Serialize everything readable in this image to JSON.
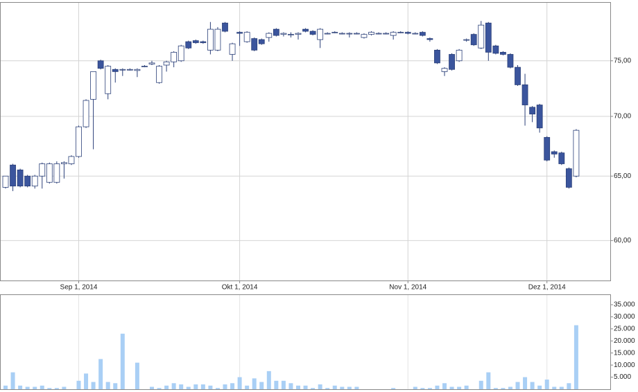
{
  "chart_data": [
    {
      "type": "candlestick",
      "log_scale": true,
      "grid": true,
      "up_color": "#ffffff",
      "down_color": "#3b559d",
      "edge_color": "#2a3f78",
      "categories": [
        null,
        null,
        null,
        null,
        null,
        null,
        null,
        null,
        null,
        null,
        "Sep 1, 2014",
        null,
        null,
        null,
        null,
        null,
        null,
        null,
        null,
        null,
        null,
        null,
        null,
        null,
        null,
        null,
        null,
        null,
        null,
        null,
        null,
        null,
        "Okt 1, 2014",
        null,
        null,
        null,
        null,
        null,
        null,
        null,
        null,
        null,
        null,
        null,
        null,
        null,
        null,
        null,
        null,
        null,
        null,
        null,
        null,
        null,
        null,
        "Nov 1, 2014",
        null,
        null,
        null,
        null,
        null,
        null,
        null,
        null,
        null,
        null,
        null,
        null,
        null,
        null,
        null,
        null,
        null,
        null,
        "Dez 1, 2014",
        null,
        null,
        null,
        null
      ],
      "open": [
        64.1,
        65.9,
        65.5,
        65.0,
        64.2,
        65.0,
        64.5,
        64.5,
        66.0,
        66.0,
        66.6,
        69.1,
        71.5,
        75.0,
        72.0,
        74.2,
        74.2,
        74.2,
        74.1,
        74.5,
        74.7,
        73.0,
        74.6,
        74.9,
        75.0,
        76.8,
        76.9,
        76.8,
        76.0,
        76.0,
        78.6,
        75.6,
        77.7,
        76.8,
        77.1,
        77.0,
        77.2,
        78.0,
        77.5,
        77.5,
        77.5,
        78.0,
        77.8,
        77.0,
        77.6,
        77.7,
        77.6,
        77.6,
        77.6,
        77.2,
        77.5,
        77.6,
        77.6,
        77.4,
        77.7,
        77.7,
        77.6,
        77.7,
        77.1,
        76.0,
        74.0,
        75.6,
        75.0,
        77.0,
        77.5,
        76.2,
        78.6,
        76.4,
        75.8,
        75.6,
        74.4,
        72.8,
        70.8,
        71.0,
        68.2,
        67.0,
        66.9,
        65.6,
        65.0
      ],
      "high": [
        65.0,
        66.0,
        65.6,
        65.1,
        65.1,
        66.1,
        66.1,
        66.2,
        66.2,
        66.7,
        69.2,
        71.5,
        74.0,
        75.1,
        74.6,
        74.3,
        74.3,
        74.3,
        74.3,
        74.6,
        75.0,
        74.6,
        75.0,
        75.9,
        76.5,
        76.9,
        77.0,
        76.9,
        78.7,
        78.2,
        78.7,
        76.7,
        77.8,
        77.8,
        77.2,
        77.1,
        77.7,
        78.1,
        77.7,
        77.7,
        77.7,
        78.1,
        77.9,
        78.1,
        77.7,
        77.8,
        77.7,
        77.7,
        77.7,
        77.6,
        77.8,
        77.7,
        77.7,
        77.8,
        77.8,
        77.8,
        77.7,
        77.8,
        77.2,
        76.1,
        74.4,
        75.7,
        76.1,
        77.1,
        77.6,
        78.8,
        78.7,
        76.5,
        75.9,
        75.7,
        74.6,
        73.8,
        70.9,
        71.1,
        68.3,
        67.1,
        67.0,
        65.7,
        68.9
      ],
      "low": [
        64.0,
        63.8,
        64.1,
        64.1,
        64.0,
        64.0,
        64.4,
        64.4,
        64.8,
        65.9,
        66.5,
        69.0,
        67.2,
        74.2,
        71.5,
        73.0,
        73.6,
        74.1,
        73.5,
        74.4,
        74.6,
        72.9,
        74.0,
        74.4,
        74.9,
        76.1,
        76.6,
        76.6,
        75.6,
        75.9,
        77.7,
        75.0,
        76.4,
        76.7,
        75.9,
        76.5,
        76.8,
        77.3,
        77.3,
        77.2,
        77.0,
        77.7,
        77.4,
        76.2,
        77.5,
        77.6,
        77.5,
        77.2,
        77.5,
        77.1,
        77.4,
        77.5,
        77.5,
        77.0,
        77.6,
        77.5,
        77.5,
        77.3,
        76.8,
        74.7,
        73.6,
        74.1,
        74.9,
        76.8,
        76.4,
        76.1,
        75.0,
        75.6,
        75.5,
        74.3,
        72.7,
        69.2,
        69.5,
        68.6,
        66.2,
        66.5,
        65.9,
        64.0,
        64.9
      ],
      "close": [
        65.0,
        64.2,
        64.2,
        64.2,
        65.0,
        66.0,
        66.0,
        66.0,
        66.1,
        66.6,
        69.1,
        71.4,
        74.0,
        74.3,
        74.5,
        74.0,
        74.2,
        74.2,
        74.2,
        74.5,
        74.8,
        74.5,
        74.9,
        75.8,
        76.4,
        76.2,
        76.7,
        76.7,
        78.0,
        78.0,
        77.8,
        76.6,
        77.6,
        77.7,
        76.0,
        76.6,
        77.6,
        77.4,
        77.6,
        77.5,
        77.6,
        77.8,
        77.5,
        78.0,
        77.6,
        77.7,
        77.6,
        77.6,
        77.6,
        77.5,
        77.7,
        77.6,
        77.6,
        77.7,
        77.7,
        77.6,
        77.6,
        77.4,
        77.0,
        74.8,
        74.3,
        74.2,
        76.0,
        77.0,
        76.5,
        78.4,
        75.8,
        75.7,
        75.6,
        74.4,
        72.8,
        71.0,
        70.2,
        69.0,
        66.3,
        66.8,
        66.0,
        64.1,
        68.8
      ],
      "ylim": [
        57.1,
        80.6
      ],
      "yticks": [
        {
          "value": 60,
          "label": "60,00"
        },
        {
          "value": 65,
          "label": "65,00"
        },
        {
          "value": 70,
          "label": "70,00"
        },
        {
          "value": 75,
          "label": "75,00"
        }
      ]
    },
    {
      "type": "bar",
      "color": "#a9cff5",
      "values": [
        1500,
        7000,
        1500,
        1000,
        1000,
        1500,
        500,
        500,
        1000,
        0,
        3500,
        6500,
        3000,
        12500,
        3000,
        2500,
        23000,
        0,
        11000,
        0,
        1000,
        500,
        1500,
        2500,
        2000,
        1000,
        2000,
        2000,
        1500,
        500,
        2000,
        2500,
        5000,
        1500,
        4500,
        3000,
        7500,
        3500,
        3500,
        2500,
        1500,
        1500,
        500,
        2000,
        500,
        1500,
        1000,
        1000,
        1000,
        0,
        0,
        0,
        0,
        500,
        0,
        0,
        1000,
        500,
        500,
        1500,
        2500,
        1000,
        1000,
        1500,
        0,
        3500,
        7000,
        500,
        500,
        1000,
        3000,
        5000,
        3000,
        1500,
        4000,
        1000,
        1000,
        2500,
        26500
      ],
      "ylim": [
        0,
        39000
      ],
      "yticks": [
        {
          "value": 5000,
          "label": "5.000"
        },
        {
          "value": 10000,
          "label": "10.000"
        },
        {
          "value": 15000,
          "label": "15.000"
        },
        {
          "value": 20000,
          "label": "20.000"
        },
        {
          "value": 25000,
          "label": "25.000"
        },
        {
          "value": 30000,
          "label": "30.000"
        },
        {
          "value": 35000,
          "label": "35.000"
        }
      ]
    }
  ]
}
